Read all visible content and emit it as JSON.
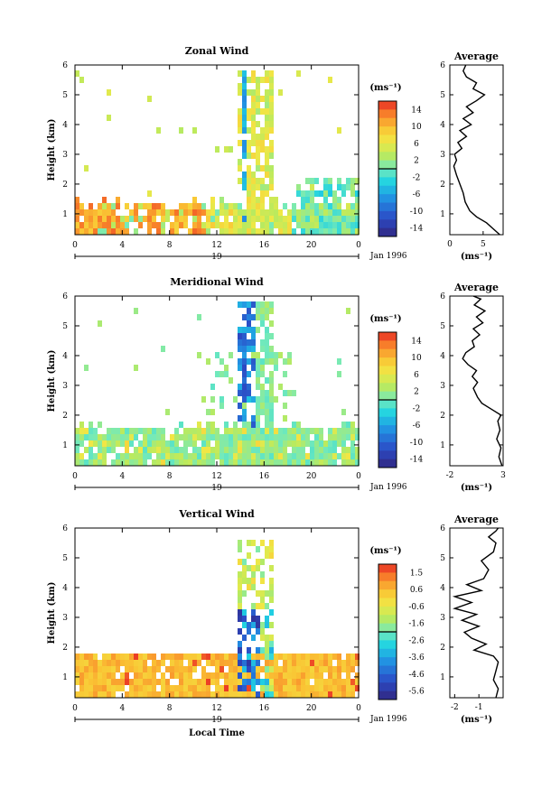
{
  "chart_data": [
    {
      "type": "heatmap",
      "title": "Zonal Wind",
      "ylabel": "Height (km)",
      "x_ticks": [
        "0",
        "4",
        "8",
        "12",
        "16",
        "20",
        "0"
      ],
      "y_ticks": [
        "1",
        "2",
        "3",
        "4",
        "5",
        "6"
      ],
      "xlim": [
        0,
        24
      ],
      "ylim": [
        0.3,
        6
      ],
      "day_label": "19",
      "date_label": "Jan 1996",
      "colorbar": {
        "unit": "(ms⁻¹)",
        "ticks": [
          "14",
          "10",
          "6",
          "2",
          "-2",
          "-6",
          "-10",
          "-14"
        ],
        "range": [
          -16,
          16
        ]
      },
      "grid": false,
      "profile": {
        "title": "Average",
        "xlabel": "(ms⁻¹)",
        "x_ticks": [
          "0",
          "5"
        ],
        "xlim": [
          0,
          8
        ],
        "ylim": [
          0.3,
          6
        ],
        "points": [
          [
            7.5,
            0.3
          ],
          [
            6.5,
            0.5
          ],
          [
            5.5,
            0.7
          ],
          [
            4,
            0.9
          ],
          [
            3,
            1.1
          ],
          [
            2.3,
            1.4
          ],
          [
            2,
            1.7
          ],
          [
            1.5,
            2.0
          ],
          [
            1,
            2.3
          ],
          [
            0.6,
            2.6
          ],
          [
            1.0,
            2.8
          ],
          [
            0.7,
            3.0
          ],
          [
            1.8,
            3.2
          ],
          [
            1.2,
            3.4
          ],
          [
            2.5,
            3.6
          ],
          [
            1.5,
            3.8
          ],
          [
            3.2,
            4.0
          ],
          [
            2.0,
            4.2
          ],
          [
            3.5,
            4.4
          ],
          [
            2.5,
            4.6
          ],
          [
            4.0,
            4.8
          ],
          [
            5.2,
            5.0
          ],
          [
            3.5,
            5.2
          ],
          [
            4.0,
            5.4
          ],
          [
            2.5,
            5.6
          ],
          [
            2.0,
            5.8
          ],
          [
            2.4,
            6.0
          ]
        ]
      }
    },
    {
      "type": "heatmap",
      "title": "Meridional Wind",
      "ylabel": "Height (km)",
      "x_ticks": [
        "0",
        "4",
        "8",
        "12",
        "16",
        "20",
        "0"
      ],
      "y_ticks": [
        "1",
        "2",
        "3",
        "4",
        "5",
        "6"
      ],
      "xlim": [
        0,
        24
      ],
      "ylim": [
        0.3,
        6
      ],
      "day_label": "19",
      "date_label": "Jan 1996",
      "colorbar": {
        "unit": "(ms⁻¹)",
        "ticks": [
          "14",
          "10",
          "6",
          "2",
          "-2",
          "-6",
          "-10",
          "-14"
        ],
        "range": [
          -16,
          16
        ]
      },
      "grid": false,
      "profile": {
        "title": "Average",
        "xlabel": "(ms⁻¹)",
        "x_ticks": [
          "-2",
          "3"
        ],
        "x_tick_values": [
          -2,
          3
        ],
        "xlim": [
          -2,
          3
        ],
        "ylim": [
          0.3,
          6
        ],
        "points": [
          [
            2.9,
            0.3
          ],
          [
            2.6,
            0.6
          ],
          [
            2.8,
            0.9
          ],
          [
            2.4,
            1.2
          ],
          [
            2.7,
            1.5
          ],
          [
            2.5,
            1.8
          ],
          [
            2.8,
            2.0
          ],
          [
            1.9,
            2.2
          ],
          [
            1.0,
            2.4
          ],
          [
            0.6,
            2.6
          ],
          [
            0.2,
            2.9
          ],
          [
            0.6,
            3.1
          ],
          [
            0.1,
            3.3
          ],
          [
            0.5,
            3.5
          ],
          [
            -0.3,
            3.7
          ],
          [
            -0.8,
            3.9
          ],
          [
            -0.5,
            4.1
          ],
          [
            0.3,
            4.3
          ],
          [
            0.1,
            4.5
          ],
          [
            0.8,
            4.7
          ],
          [
            0.2,
            4.9
          ],
          [
            1.1,
            5.1
          ],
          [
            0.5,
            5.3
          ],
          [
            1.3,
            5.5
          ],
          [
            0.3,
            5.7
          ],
          [
            0.9,
            5.9
          ],
          [
            0.2,
            6.0
          ]
        ]
      }
    },
    {
      "type": "heatmap",
      "title": "Vertical Wind",
      "ylabel": "Height (km)",
      "xlabel": "Local Time",
      "x_ticks": [
        "0",
        "4",
        "8",
        "12",
        "16",
        "20",
        "0"
      ],
      "y_ticks": [
        "1",
        "2",
        "3",
        "4",
        "5",
        "6"
      ],
      "xlim": [
        0,
        24
      ],
      "ylim": [
        0.3,
        6
      ],
      "day_label": "19",
      "date_label": "Jan 1996",
      "colorbar": {
        "unit": "(ms⁻¹)",
        "ticks": [
          "1.5",
          "0.6",
          "-0.6",
          "-1.6",
          "-2.6",
          "-3.6",
          "-4.6",
          "-5.6"
        ],
        "range": [
          -6.1,
          2.0
        ]
      },
      "grid": false,
      "profile": {
        "title": "Average",
        "xlabel": "(ms⁻¹)",
        "x_ticks": [
          "-2",
          "-1"
        ],
        "x_tick_values": [
          -2,
          -1
        ],
        "xlim": [
          -2.2,
          0
        ],
        "ylim": [
          0.3,
          6
        ],
        "points": [
          [
            -0.3,
            0.3
          ],
          [
            -0.2,
            0.6
          ],
          [
            -0.4,
            0.9
          ],
          [
            -0.3,
            1.2
          ],
          [
            -0.2,
            1.5
          ],
          [
            -0.4,
            1.7
          ],
          [
            -1.2,
            1.9
          ],
          [
            -0.7,
            2.1
          ],
          [
            -1.3,
            2.3
          ],
          [
            -1.6,
            2.5
          ],
          [
            -1.0,
            2.7
          ],
          [
            -1.7,
            2.9
          ],
          [
            -1.1,
            3.1
          ],
          [
            -2.0,
            3.3
          ],
          [
            -1.3,
            3.5
          ],
          [
            -2.0,
            3.7
          ],
          [
            -0.9,
            3.9
          ],
          [
            -1.5,
            4.1
          ],
          [
            -0.8,
            4.3
          ],
          [
            -0.6,
            4.6
          ],
          [
            -0.9,
            4.9
          ],
          [
            -0.4,
            5.2
          ],
          [
            -0.3,
            5.5
          ],
          [
            -0.6,
            5.7
          ],
          [
            -0.3,
            5.9
          ],
          [
            -0.2,
            6.0
          ]
        ]
      }
    }
  ]
}
